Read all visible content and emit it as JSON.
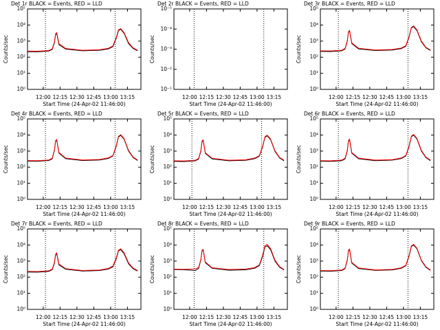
{
  "chart_data": [
    {
      "type": "line",
      "title": "Det 1r BLACK = Events, RED = LLD",
      "xlabel": "Start Time (24-Apr-02 11:46:00)",
      "ylabel": "Counts/sec",
      "log_y": true,
      "xlim": [
        "11:46",
        "13:27"
      ],
      "xticks": [
        "12:00",
        "12:15",
        "12:30",
        "12:45",
        "13:00",
        "13:15"
      ],
      "ylim": [
        1,
        100000
      ],
      "yticks": [
        {
          "value": 1,
          "label": "10⁰"
        },
        {
          "value": 10,
          "label": "10¹"
        },
        {
          "value": 100,
          "label": "10²"
        },
        {
          "value": 1000,
          "label": "10³"
        },
        {
          "value": 10000,
          "label": "10⁴"
        },
        {
          "value": 100000,
          "label": "10⁵"
        }
      ],
      "vlines": [
        "12:02",
        "13:04"
      ],
      "x": [
        "11:46",
        "11:55",
        "12:05",
        "12:08",
        "12:10",
        "12:11",
        "12:12",
        "12:14",
        "12:20",
        "12:35",
        "12:50",
        "12:58",
        "13:02",
        "13:05",
        "13:07",
        "13:09",
        "13:12",
        "13:16",
        "13:20",
        "13:24"
      ],
      "series": [
        {
          "color": "#000000",
          "values": [
            220,
            215,
            240,
            300,
            800,
            2500,
            3000,
            600,
            320,
            250,
            270,
            330,
            450,
            1500,
            4500,
            5500,
            3000,
            700,
            350,
            250
          ]
        },
        {
          "color": "#ff0000",
          "values": [
            240,
            235,
            260,
            330,
            900,
            2800,
            3400,
            700,
            350,
            270,
            290,
            360,
            500,
            1700,
            5000,
            6000,
            3400,
            800,
            380,
            270
          ]
        }
      ]
    },
    {
      "type": "line",
      "title": "Det 2r BLACK = Events, RED = LLD",
      "xlabel": "Start Time (24-Apr-02 11:46:00)",
      "ylabel": "Counts/sec",
      "log_y": true,
      "xlim": [
        "11:46",
        "13:27"
      ],
      "xticks": [
        "12:00",
        "12:15",
        "12:30",
        "12:45",
        "13:00",
        "13:15"
      ],
      "ylim": [
        0.1,
        1e-05
      ],
      "yticks": [
        {
          "value": 0.1,
          "label": "10⁻¹"
        },
        {
          "value": 0.01,
          "label": "10⁻²"
        },
        {
          "value": 0.001,
          "label": "10⁻³"
        },
        {
          "value": 0.0001,
          "label": "10⁻⁴"
        },
        {
          "value": 1e-05,
          "label": "10⁻⁵"
        }
      ],
      "vlines": [
        "12:04",
        "13:06"
      ],
      "x": [],
      "series": []
    },
    {
      "type": "line",
      "title": "Det 3r BLACK = Events, RED = LLD",
      "xlabel": "Start Time (24-Apr-02 11:46:00)",
      "ylabel": "Counts/sec",
      "log_y": true,
      "xlim": [
        "11:46",
        "13:27"
      ],
      "xticks": [
        "12:00",
        "12:15",
        "12:30",
        "12:45",
        "13:00",
        "13:15"
      ],
      "ylim": [
        1,
        100000
      ],
      "yticks": [
        {
          "value": 1,
          "label": "10⁰"
        },
        {
          "value": 10,
          "label": "10¹"
        },
        {
          "value": 100,
          "label": "10²"
        },
        {
          "value": 1000,
          "label": "10³"
        },
        {
          "value": 10000,
          "label": "10⁴"
        },
        {
          "value": 100000,
          "label": "10⁵"
        }
      ],
      "vlines": [
        "12:02",
        "13:04"
      ],
      "x": [
        "11:46",
        "11:55",
        "12:05",
        "12:08",
        "12:10",
        "12:11",
        "12:12",
        "12:14",
        "12:20",
        "12:35",
        "12:50",
        "12:58",
        "13:02",
        "13:05",
        "13:07",
        "13:09",
        "13:12",
        "13:16",
        "13:20",
        "13:24"
      ],
      "series": [
        {
          "color": "#000000",
          "values": [
            230,
            225,
            250,
            320,
            1000,
            3500,
            4200,
            700,
            330,
            260,
            280,
            340,
            480,
            1800,
            6500,
            8000,
            4500,
            900,
            380,
            260
          ]
        },
        {
          "color": "#ff0000",
          "values": [
            250,
            245,
            270,
            350,
            1100,
            3800,
            4600,
            780,
            360,
            280,
            300,
            370,
            520,
            2000,
            7000,
            8800,
            5000,
            1000,
            410,
            280
          ]
        }
      ]
    },
    {
      "type": "line",
      "title": "Det 4r BLACK = Events, RED = LLD",
      "xlabel": "Start Time (24-Apr-02 11:46:00)",
      "ylabel": "Counts/sec",
      "log_y": true,
      "xlim": [
        "11:46",
        "13:27"
      ],
      "xticks": [
        "12:00",
        "12:15",
        "12:30",
        "12:45",
        "13:00",
        "13:15"
      ],
      "ylim": [
        1,
        100000
      ],
      "yticks": [
        {
          "value": 1,
          "label": "10⁰"
        },
        {
          "value": 10,
          "label": "10¹"
        },
        {
          "value": 100,
          "label": "10²"
        },
        {
          "value": 1000,
          "label": "10³"
        },
        {
          "value": 10000,
          "label": "10⁴"
        },
        {
          "value": 100000,
          "label": "10⁵"
        }
      ],
      "vlines": [
        "12:02",
        "13:04"
      ],
      "x": [
        "11:46",
        "11:55",
        "12:05",
        "12:08",
        "12:10",
        "12:11",
        "12:12",
        "12:14",
        "12:20",
        "12:35",
        "12:50",
        "12:58",
        "13:02",
        "13:05",
        "13:07",
        "13:09",
        "13:12",
        "13:16",
        "13:20",
        "13:24"
      ],
      "series": [
        {
          "color": "#000000",
          "values": [
            240,
            235,
            260,
            330,
            1100,
            4000,
            4800,
            750,
            340,
            260,
            280,
            350,
            500,
            2000,
            7500,
            9500,
            5500,
            1000,
            400,
            260
          ]
        },
        {
          "color": "#ff0000",
          "values": [
            260,
            255,
            280,
            360,
            1200,
            4400,
            5300,
            820,
            370,
            280,
            300,
            380,
            540,
            2200,
            8200,
            10500,
            6000,
            1100,
            430,
            280
          ]
        }
      ]
    },
    {
      "type": "line",
      "title": "Det 5r BLACK = Events, RED = LLD",
      "xlabel": "Start Time (24-Apr-02 11:46:00)",
      "ylabel": "Counts/sec",
      "log_y": true,
      "xlim": [
        "11:46",
        "13:27"
      ],
      "xticks": [
        "12:00",
        "12:15",
        "12:30",
        "12:45",
        "13:00",
        "13:15"
      ],
      "ylim": [
        1,
        100000
      ],
      "yticks": [
        {
          "value": 1,
          "label": "10⁰"
        },
        {
          "value": 10,
          "label": "10¹"
        },
        {
          "value": 100,
          "label": "10²"
        },
        {
          "value": 1000,
          "label": "10³"
        },
        {
          "value": 10000,
          "label": "10⁴"
        },
        {
          "value": 100000,
          "label": "10⁵"
        }
      ],
      "vlines": [
        "12:02",
        "13:04"
      ],
      "x": [
        "11:46",
        "11:55",
        "12:05",
        "12:08",
        "12:10",
        "12:11",
        "12:12",
        "12:14",
        "12:20",
        "12:35",
        "12:50",
        "12:58",
        "13:02",
        "13:05",
        "13:07",
        "13:09",
        "13:12",
        "13:16",
        "13:20",
        "13:24"
      ],
      "series": [
        {
          "color": "#000000",
          "values": [
            230,
            225,
            250,
            320,
            1000,
            3800,
            4500,
            720,
            330,
            250,
            270,
            340,
            480,
            1900,
            7000,
            9000,
            5200,
            950,
            380,
            250
          ]
        },
        {
          "color": "#ff0000",
          "values": [
            250,
            245,
            270,
            350,
            1100,
            4200,
            5000,
            790,
            360,
            270,
            290,
            370,
            520,
            2100,
            7700,
            9800,
            5700,
            1050,
            410,
            270
          ]
        }
      ]
    },
    {
      "type": "line",
      "title": "Det 6r BLACK = Events, RED = LLD",
      "xlabel": "Start Time (24-Apr-02 11:46:00)",
      "ylabel": "Counts/sec",
      "log_y": true,
      "xlim": [
        "11:46",
        "13:27"
      ],
      "xticks": [
        "12:00",
        "12:15",
        "12:30",
        "12:45",
        "13:00",
        "13:15"
      ],
      "ylim": [
        1,
        100000
      ],
      "yticks": [
        {
          "value": 1,
          "label": "10⁰"
        },
        {
          "value": 10,
          "label": "10¹"
        },
        {
          "value": 100,
          "label": "10²"
        },
        {
          "value": 1000,
          "label": "10³"
        },
        {
          "value": 10000,
          "label": "10⁴"
        },
        {
          "value": 100000,
          "label": "10⁵"
        }
      ],
      "vlines": [
        "12:02",
        "13:04"
      ],
      "x": [
        "11:46",
        "11:55",
        "12:05",
        "12:08",
        "12:10",
        "12:11",
        "12:12",
        "12:14",
        "12:20",
        "12:35",
        "12:50",
        "12:58",
        "13:02",
        "13:05",
        "13:07",
        "13:09",
        "13:12",
        "13:16",
        "13:20",
        "13:24"
      ],
      "series": [
        {
          "color": "#000000",
          "values": [
            235,
            230,
            255,
            330,
            1050,
            4200,
            5000,
            740,
            335,
            255,
            275,
            345,
            490,
            1950,
            7800,
            9800,
            5600,
            1000,
            390,
            255
          ]
        },
        {
          "color": "#ff0000",
          "values": [
            255,
            250,
            275,
            360,
            1150,
            4600,
            5500,
            810,
            365,
            275,
            295,
            375,
            530,
            2150,
            8500,
            10800,
            6100,
            1100,
            420,
            275
          ]
        }
      ]
    },
    {
      "type": "line",
      "title": "Det 7r BLACK = Events, RED = LLD",
      "xlabel": "Start Time (24-Apr-02 11:46:00)",
      "ylabel": "Counts/sec",
      "log_y": true,
      "xlim": [
        "11:46",
        "13:27"
      ],
      "xticks": [
        "12:00",
        "12:15",
        "12:30",
        "12:45",
        "13:00",
        "13:15"
      ],
      "ylim": [
        1,
        100000
      ],
      "yticks": [
        {
          "value": 1,
          "label": "10⁰"
        },
        {
          "value": 10,
          "label": "10¹"
        },
        {
          "value": 100,
          "label": "10²"
        },
        {
          "value": 1000,
          "label": "10³"
        },
        {
          "value": 10000,
          "label": "10⁴"
        },
        {
          "value": 100000,
          "label": "10⁵"
        }
      ],
      "vlines": [
        "12:02",
        "13:04"
      ],
      "x": [
        "11:46",
        "11:55",
        "12:05",
        "12:08",
        "12:10",
        "12:11",
        "12:12",
        "12:14",
        "12:20",
        "12:35",
        "12:50",
        "12:58",
        "13:02",
        "13:05",
        "13:07",
        "13:09",
        "13:12",
        "13:16",
        "13:20",
        "13:24"
      ],
      "series": [
        {
          "color": "#000000",
          "values": [
            210,
            205,
            230,
            290,
            750,
            2300,
            2900,
            580,
            310,
            240,
            260,
            320,
            440,
            1400,
            4300,
            5200,
            2900,
            680,
            340,
            240
          ]
        },
        {
          "color": "#ff0000",
          "values": [
            230,
            225,
            250,
            320,
            850,
            2600,
            3300,
            660,
            340,
            260,
            280,
            350,
            490,
            1600,
            4800,
            5800,
            3300,
            780,
            370,
            260
          ]
        }
      ]
    },
    {
      "type": "line",
      "title": "Det 8r BLACK = Events, RED = LLD",
      "xlabel": "Start Time (24-Apr-02 11:46:00)",
      "ylabel": "Counts/sec",
      "log_y": true,
      "xlim": [
        "11:46",
        "13:27"
      ],
      "xticks": [
        "12:00",
        "12:15",
        "12:30",
        "12:45",
        "13:00",
        "13:15"
      ],
      "ylim": [
        1,
        100000
      ],
      "yticks": [
        {
          "value": 1,
          "label": "10⁰"
        },
        {
          "value": 10,
          "label": "10¹"
        },
        {
          "value": 100,
          "label": "10²"
        },
        {
          "value": 1000,
          "label": "10³"
        },
        {
          "value": 10000,
          "label": "10⁴"
        },
        {
          "value": 100000,
          "label": "10⁵"
        }
      ],
      "vlines": [
        "12:04",
        "13:06"
      ],
      "x": [
        "11:46",
        "11:55",
        "12:05",
        "12:08",
        "12:10",
        "12:11",
        "12:12",
        "12:14",
        "12:20",
        "12:35",
        "12:50",
        "12:58",
        "13:02",
        "13:05",
        "13:07",
        "13:09",
        "13:12",
        "13:16",
        "13:20",
        "13:24"
      ],
      "series": [
        {
          "color": "#000000",
          "values": [
            300,
            290,
            260,
            350,
            1200,
            4200,
            5000,
            800,
            360,
            270,
            290,
            360,
            520,
            2000,
            7500,
            9000,
            5200,
            1000,
            420,
            280
          ]
        },
        {
          "color": "#ff0000",
          "values": [
            320,
            310,
            330,
            400,
            1300,
            4600,
            5400,
            880,
            390,
            300,
            320,
            400,
            580,
            2400,
            9000,
            11000,
            6200,
            1150,
            460,
            300
          ]
        }
      ]
    },
    {
      "type": "line",
      "title": "Det 9r BLACK = Events, RED = LLD",
      "xlabel": "Start Time (24-Apr-02 11:46:00)",
      "ylabel": "Counts/sec",
      "log_y": true,
      "xlim": [
        "11:46",
        "13:27"
      ],
      "xticks": [
        "12:00",
        "12:15",
        "12:30",
        "12:45",
        "13:00",
        "13:15"
      ],
      "ylim": [
        1,
        100000
      ],
      "yticks": [
        {
          "value": 1,
          "label": "10⁰"
        },
        {
          "value": 10,
          "label": "10¹"
        },
        {
          "value": 100,
          "label": "10²"
        },
        {
          "value": 1000,
          "label": "10³"
        },
        {
          "value": 10000,
          "label": "10⁴"
        },
        {
          "value": 100000,
          "label": "10⁵"
        }
      ],
      "vlines": [
        "12:02",
        "13:04"
      ],
      "x": [
        "11:46",
        "11:55",
        "12:05",
        "12:08",
        "12:10",
        "12:11",
        "12:12",
        "12:14",
        "12:20",
        "12:35",
        "12:50",
        "12:58",
        "13:02",
        "13:05",
        "13:07",
        "13:09",
        "13:12",
        "13:16",
        "13:20",
        "13:24"
      ],
      "series": [
        {
          "color": "#000000",
          "values": [
            240,
            235,
            260,
            340,
            1150,
            4300,
            5100,
            760,
            345,
            265,
            285,
            355,
            510,
            2100,
            8000,
            10000,
            5800,
            1050,
            410,
            265
          ]
        },
        {
          "color": "#ff0000",
          "values": [
            260,
            255,
            280,
            370,
            1250,
            4700,
            5600,
            830,
            375,
            285,
            305,
            385,
            550,
            2300,
            8700,
            11000,
            6300,
            1150,
            440,
            285
          ]
        }
      ]
    }
  ]
}
